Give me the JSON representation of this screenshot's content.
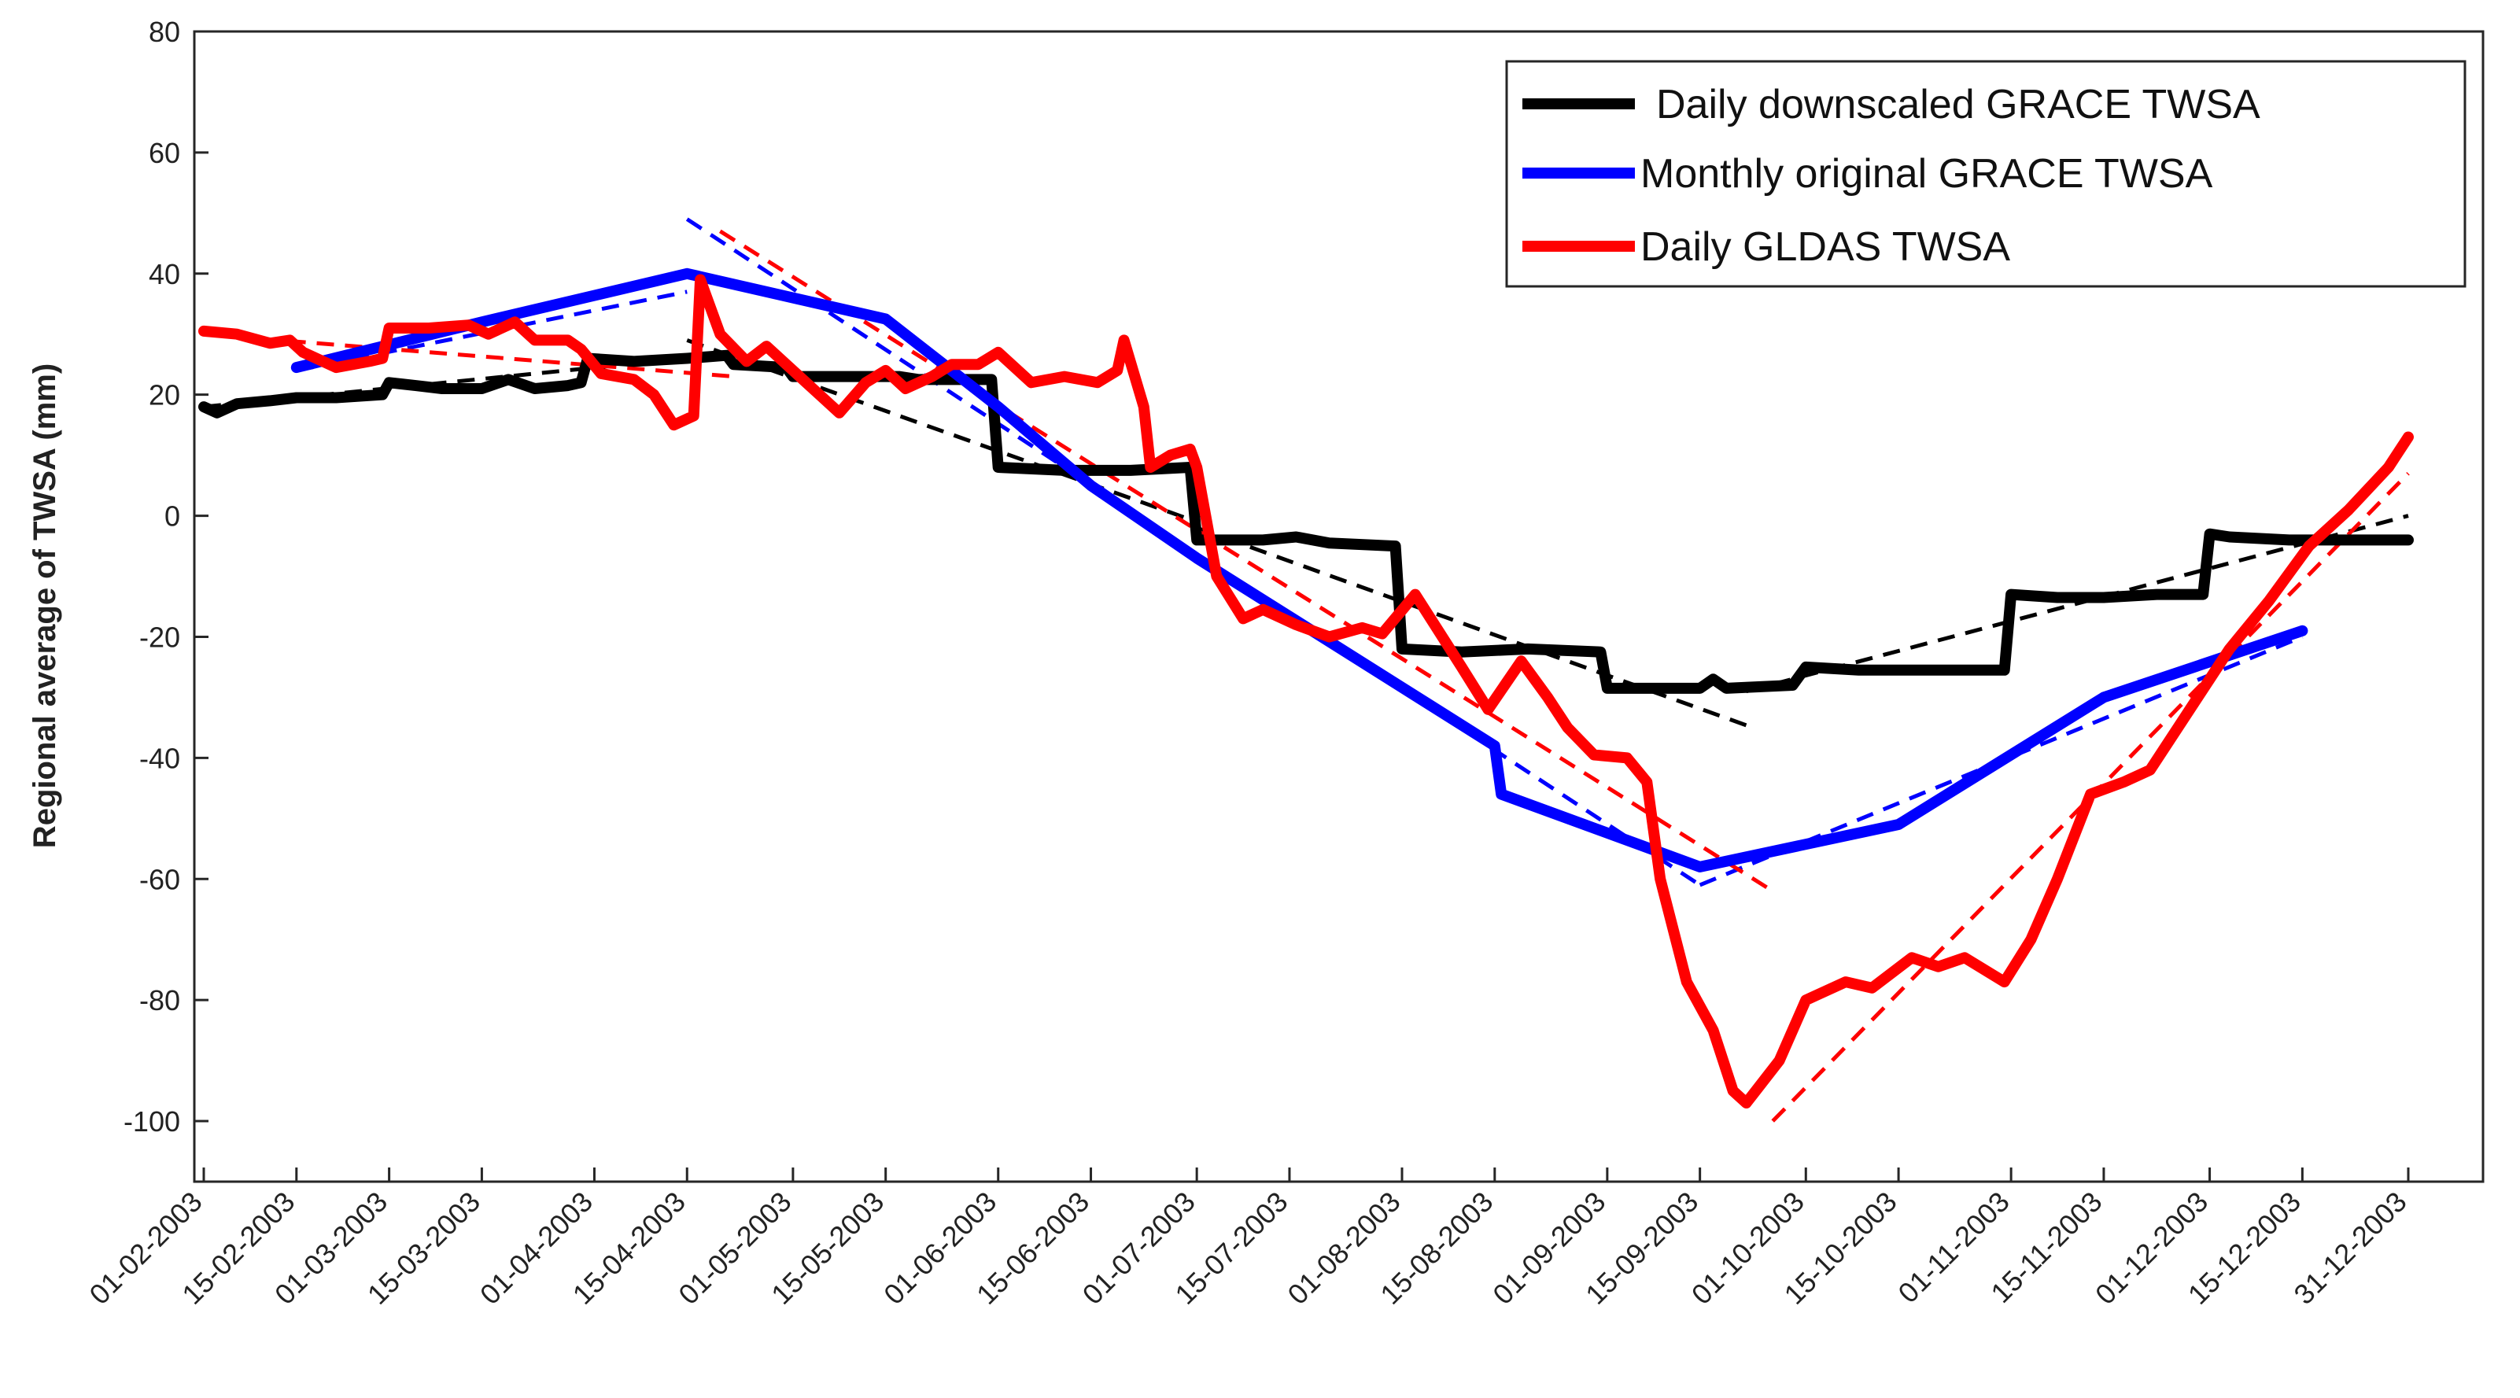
{
  "chart_data": {
    "type": "line",
    "title": "",
    "xlabel": "",
    "ylabel": "Regional average of TWSA (mm)",
    "ylim": [
      -110,
      80
    ],
    "yticks": [
      80,
      60,
      40,
      20,
      0,
      -20,
      -40,
      -60,
      -80,
      -100
    ],
    "x_range_days": [
      0,
      333
    ],
    "x_ticks": [
      {
        "label": "01-02-2003",
        "day": 0
      },
      {
        "label": "15-02-2003",
        "day": 14
      },
      {
        "label": "01-03-2003",
        "day": 28
      },
      {
        "label": "15-03-2003",
        "day": 42
      },
      {
        "label": "01-04-2003",
        "day": 59
      },
      {
        "label": "15-04-2003",
        "day": 73
      },
      {
        "label": "01-05-2003",
        "day": 89
      },
      {
        "label": "15-05-2003",
        "day": 103
      },
      {
        "label": "01-06-2003",
        "day": 120
      },
      {
        "label": "15-06-2003",
        "day": 134
      },
      {
        "label": "01-07-2003",
        "day": 150
      },
      {
        "label": "15-07-2003",
        "day": 164
      },
      {
        "label": "01-08-2003",
        "day": 181
      },
      {
        "label": "15-08-2003",
        "day": 195
      },
      {
        "label": "01-09-2003",
        "day": 212
      },
      {
        "label": "15-09-2003",
        "day": 226
      },
      {
        "label": "01-10-2003",
        "day": 242
      },
      {
        "label": "15-10-2003",
        "day": 256
      },
      {
        "label": "01-11-2003",
        "day": 273
      },
      {
        "label": "15-11-2003",
        "day": 287
      },
      {
        "label": "01-12-2003",
        "day": 303
      },
      {
        "label": "15-12-2003",
        "day": 317
      },
      {
        "label": "31-12-2003",
        "day": 333
      }
    ],
    "legend": {
      "position": "top-right",
      "entries": [
        "Daily downscaled GRACE TWSA",
        "Monthly original GRACE TWSA",
        "Daily GLDAS TWSA"
      ]
    },
    "series": [
      {
        "name": "Daily downscaled GRACE TWSA",
        "color": "#000000",
        "points": [
          [
            0,
            18
          ],
          [
            2,
            17
          ],
          [
            5,
            18.5
          ],
          [
            10,
            19
          ],
          [
            14,
            19.5
          ],
          [
            20,
            19.5
          ],
          [
            27,
            20
          ],
          [
            28,
            22
          ],
          [
            32,
            21.5
          ],
          [
            36,
            21
          ],
          [
            42,
            21
          ],
          [
            46,
            22.5
          ],
          [
            50,
            21
          ],
          [
            55,
            21.5
          ],
          [
            57,
            22
          ],
          [
            58,
            26
          ],
          [
            65,
            25.5
          ],
          [
            73,
            26
          ],
          [
            79,
            26.5
          ],
          [
            80,
            25
          ],
          [
            88,
            24.5
          ],
          [
            89,
            23
          ],
          [
            100,
            23
          ],
          [
            105,
            23
          ],
          [
            108,
            22.5
          ],
          [
            118,
            22.5
          ],
          [
            119,
            22.5
          ],
          [
            120,
            8
          ],
          [
            130,
            7.5
          ],
          [
            140,
            7.5
          ],
          [
            149,
            8
          ],
          [
            150,
            -4
          ],
          [
            160,
            -4
          ],
          [
            165,
            -3.5
          ],
          [
            170,
            -4.5
          ],
          [
            180,
            -5
          ],
          [
            181,
            -22
          ],
          [
            190,
            -22.5
          ],
          [
            200,
            -22
          ],
          [
            211,
            -22.5
          ],
          [
            212,
            -28.5
          ],
          [
            220,
            -28.5
          ],
          [
            226,
            -28.5
          ],
          [
            228,
            -27
          ],
          [
            230,
            -28.5
          ],
          [
            240,
            -28
          ],
          [
            242,
            -25
          ],
          [
            250,
            -25.5
          ],
          [
            262,
            -25.5
          ],
          [
            272,
            -25.5
          ],
          [
            273,
            -13
          ],
          [
            280,
            -13.5
          ],
          [
            287,
            -13.5
          ],
          [
            295,
            -13
          ],
          [
            302,
            -13
          ],
          [
            303,
            -3
          ],
          [
            306,
            -3.5
          ],
          [
            315,
            -4
          ],
          [
            325,
            -4
          ],
          [
            333,
            -4
          ]
        ]
      },
      {
        "name": "Monthly original GRACE TWSA",
        "color": "#0000ff",
        "points": [
          [
            14,
            24.5
          ],
          [
            42,
            32
          ],
          [
            73,
            40
          ],
          [
            103,
            32.5
          ],
          [
            120,
            18
          ],
          [
            134,
            5
          ],
          [
            150,
            -7
          ],
          [
            195,
            -38
          ],
          [
            196,
            -46
          ],
          [
            226,
            -58
          ],
          [
            256,
            -51
          ],
          [
            287,
            -30
          ],
          [
            317,
            -19
          ]
        ]
      },
      {
        "name": "Daily GLDAS TWSA",
        "color": "#ff0000",
        "points": [
          [
            0,
            30.5
          ],
          [
            5,
            30
          ],
          [
            10,
            28.5
          ],
          [
            13,
            29
          ],
          [
            15,
            27
          ],
          [
            20,
            24.5
          ],
          [
            25,
            25.5
          ],
          [
            27,
            26
          ],
          [
            28,
            31
          ],
          [
            34,
            31
          ],
          [
            40,
            31.5
          ],
          [
            43,
            30
          ],
          [
            47,
            32
          ],
          [
            50,
            29
          ],
          [
            55,
            29
          ],
          [
            57,
            27.5
          ],
          [
            60,
            23.5
          ],
          [
            65,
            22.5
          ],
          [
            68,
            20
          ],
          [
            71,
            15
          ],
          [
            74,
            16.5
          ],
          [
            75,
            39
          ],
          [
            78,
            30
          ],
          [
            82,
            25.5
          ],
          [
            85,
            28
          ],
          [
            90,
            23
          ],
          [
            96,
            17
          ],
          [
            100,
            22
          ],
          [
            103,
            24
          ],
          [
            106,
            21
          ],
          [
            110,
            23
          ],
          [
            113,
            25
          ],
          [
            117,
            25
          ],
          [
            120,
            27
          ],
          [
            125,
            22
          ],
          [
            130,
            23
          ],
          [
            135,
            22
          ],
          [
            138,
            24
          ],
          [
            139,
            29
          ],
          [
            142,
            18
          ],
          [
            143,
            8
          ],
          [
            146,
            10
          ],
          [
            149,
            11
          ],
          [
            150,
            8
          ],
          [
            153,
            -10
          ],
          [
            157,
            -17
          ],
          [
            160,
            -15.5
          ],
          [
            165,
            -18
          ],
          [
            170,
            -20
          ],
          [
            175,
            -18.5
          ],
          [
            178,
            -19.5
          ],
          [
            183,
            -13
          ],
          [
            190,
            -25
          ],
          [
            194,
            -32
          ],
          [
            199,
            -24
          ],
          [
            203,
            -30
          ],
          [
            206,
            -35
          ],
          [
            210,
            -39.5
          ],
          [
            215,
            -40
          ],
          [
            218,
            -44
          ],
          [
            220,
            -60
          ],
          [
            224,
            -77
          ],
          [
            228,
            -85
          ],
          [
            231,
            -95
          ],
          [
            233,
            -97
          ],
          [
            238,
            -90
          ],
          [
            242,
            -80
          ],
          [
            248,
            -77
          ],
          [
            252,
            -78
          ],
          [
            258,
            -73
          ],
          [
            262,
            -74.5
          ],
          [
            266,
            -73
          ],
          [
            272,
            -77
          ],
          [
            276,
            -70
          ],
          [
            280,
            -60
          ],
          [
            285,
            -46
          ],
          [
            290,
            -44
          ],
          [
            294,
            -42
          ],
          [
            300,
            -32
          ],
          [
            306,
            -22
          ],
          [
            312,
            -14
          ],
          [
            318,
            -5
          ],
          [
            324,
            1
          ],
          [
            330,
            8
          ],
          [
            333,
            13
          ]
        ]
      }
    ],
    "trend_lines": [
      {
        "series": "Daily downscaled GRACE TWSA",
        "color": "#000000",
        "segments": [
          [
            [
              0,
              18
            ],
            [
              73,
              26
            ]
          ],
          [
            [
              73,
              29
            ],
            [
              150,
              -1
            ]
          ],
          [
            [
              150,
              -2
            ],
            [
              234,
              -35
            ]
          ],
          [
            [
              233,
              -29
            ],
            [
              333,
              0
            ]
          ]
        ]
      },
      {
        "series": "Monthly original GRACE TWSA",
        "color": "#0000ff",
        "segments": [
          [
            [
              14,
              24
            ],
            [
              73,
              37
            ]
          ],
          [
            [
              73,
              49
            ],
            [
              226,
              -61
            ]
          ],
          [
            [
              226,
              -61
            ],
            [
              317,
              -20
            ]
          ]
        ]
      },
      {
        "series": "Daily GLDAS TWSA",
        "color": "#ff0000",
        "segments": [
          [
            [
              0,
              30
            ],
            [
              80,
              23
            ]
          ],
          [
            [
              78,
              47
            ],
            [
              237,
              -62
            ]
          ],
          [
            [
              237,
              -100
            ],
            [
              333,
              7
            ]
          ]
        ]
      }
    ]
  }
}
